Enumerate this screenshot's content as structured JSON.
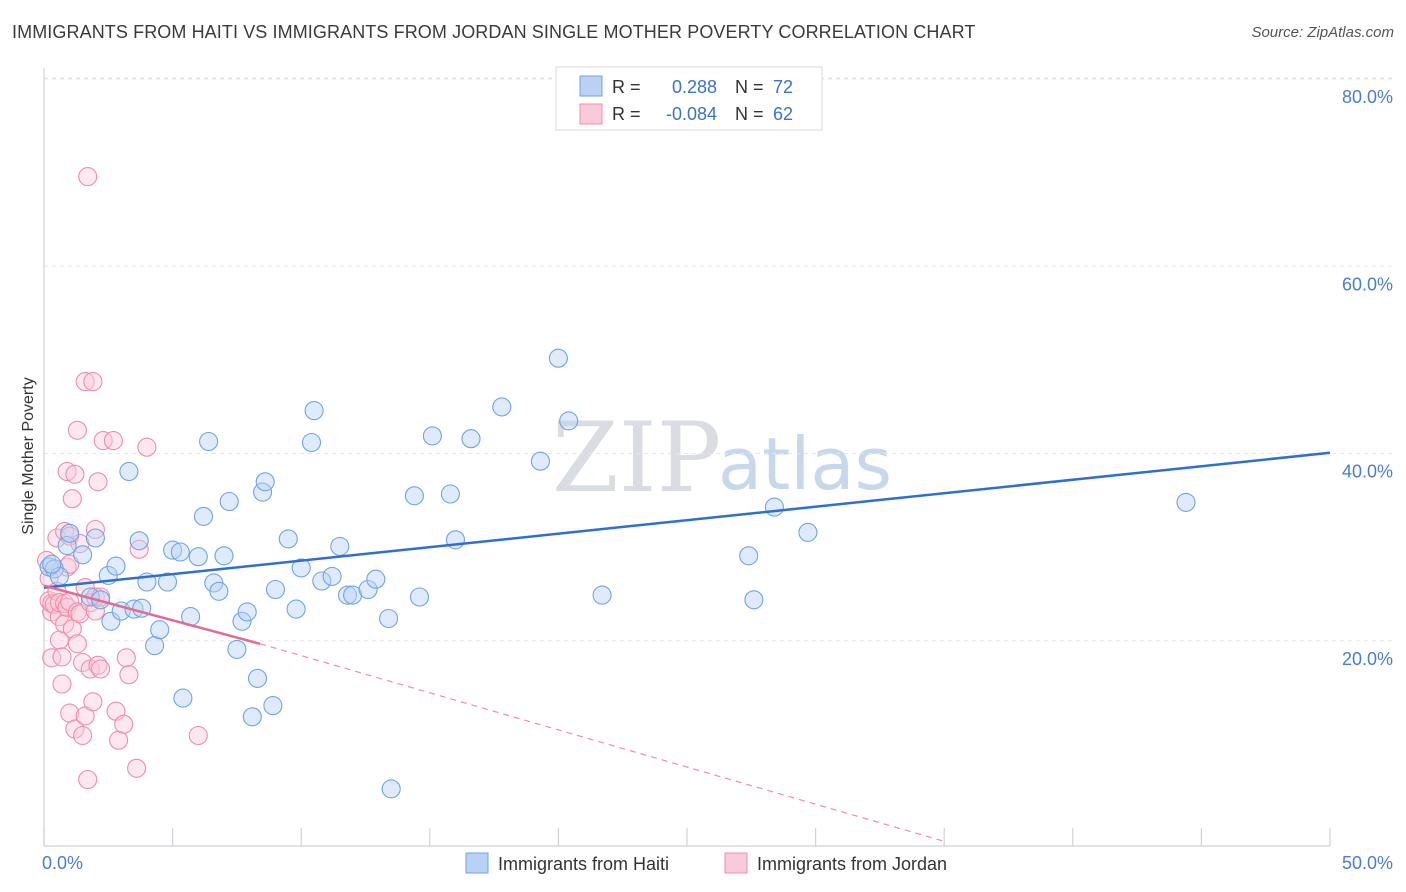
{
  "title": "IMMIGRANTS FROM HAITI VS IMMIGRANTS FROM JORDAN SINGLE MOTHER POVERTY CORRELATION CHART",
  "source": "Source: ZipAtlas.com",
  "watermark": {
    "zip": "ZIP",
    "atlas": "atlas"
  },
  "legend": {
    "r_label": "R =",
    "n_label": "N =",
    "rows": [
      {
        "r": "0.288",
        "n": "72",
        "color": "#6fa3e8"
      },
      {
        "r": "-0.084",
        "n": "62",
        "color": "#f08cab"
      }
    ]
  },
  "chart_data": {
    "type": "scatter",
    "title": "IMMIGRANTS FROM HAITI VS IMMIGRANTS FROM JORDAN SINGLE MOTHER POVERTY CORRELATION CHART",
    "xlabel": "",
    "ylabel": "Single Mother Poverty",
    "xlim": [
      0,
      50
    ],
    "ylim": [
      0,
      82
    ],
    "x_tick_labels": [
      "0.0%",
      "50.0%"
    ],
    "y_ticks": [
      20,
      40,
      60,
      80
    ],
    "y_tick_labels": [
      "20.0%",
      "40.0%",
      "60.0%",
      "80.0%"
    ],
    "grid": true,
    "series": [
      {
        "name": "Immigrants from Haiti",
        "color": "#6fa3e8",
        "trend": {
          "x0": 0,
          "y0": 27.6,
          "x1": 50,
          "y1": 42.0
        },
        "points": [
          [
            0.2,
            29.8
          ],
          [
            0.4,
            29.6
          ],
          [
            0.6,
            28.8
          ],
          [
            0.9,
            32.1
          ],
          [
            1.0,
            33.4
          ],
          [
            1.5,
            31.1
          ],
          [
            1.8,
            26.6
          ],
          [
            2.0,
            32.9
          ],
          [
            2.2,
            26.3
          ],
          [
            2.5,
            28.9
          ],
          [
            2.6,
            24.0
          ],
          [
            2.8,
            29.9
          ],
          [
            3.0,
            25.1
          ],
          [
            3.3,
            40.0
          ],
          [
            3.5,
            25.3
          ],
          [
            3.7,
            32.6
          ],
          [
            3.8,
            25.4
          ],
          [
            4.0,
            28.2
          ],
          [
            4.3,
            21.4
          ],
          [
            4.5,
            23.1
          ],
          [
            4.8,
            28.2
          ],
          [
            5.0,
            31.6
          ],
          [
            5.3,
            31.4
          ],
          [
            5.4,
            15.8
          ],
          [
            5.7,
            24.5
          ],
          [
            6.0,
            30.9
          ],
          [
            6.2,
            35.2
          ],
          [
            6.4,
            43.2
          ],
          [
            6.6,
            28.1
          ],
          [
            6.8,
            27.2
          ],
          [
            7.0,
            31.0
          ],
          [
            7.2,
            36.8
          ],
          [
            7.5,
            21.0
          ],
          [
            7.7,
            24.0
          ],
          [
            7.9,
            25.0
          ],
          [
            8.1,
            13.8
          ],
          [
            8.3,
            17.9
          ],
          [
            8.5,
            37.8
          ],
          [
            8.6,
            38.9
          ],
          [
            8.9,
            15.0
          ],
          [
            9.0,
            27.4
          ],
          [
            9.5,
            32.8
          ],
          [
            9.8,
            25.3
          ],
          [
            10.0,
            29.7
          ],
          [
            10.4,
            43.1
          ],
          [
            10.5,
            46.5
          ],
          [
            10.8,
            28.3
          ],
          [
            11.2,
            28.8
          ],
          [
            11.5,
            32.0
          ],
          [
            11.8,
            26.8
          ],
          [
            12.0,
            26.8
          ],
          [
            12.6,
            27.4
          ],
          [
            12.9,
            28.5
          ],
          [
            13.4,
            24.3
          ],
          [
            13.5,
            6.1
          ],
          [
            14.4,
            37.4
          ],
          [
            14.6,
            26.6
          ],
          [
            15.1,
            43.8
          ],
          [
            15.8,
            37.6
          ],
          [
            16.0,
            32.7
          ],
          [
            16.6,
            43.5
          ],
          [
            17.8,
            46.9
          ],
          [
            19.3,
            41.1
          ],
          [
            20.0,
            52.1
          ],
          [
            20.4,
            45.4
          ],
          [
            21.7,
            26.8
          ],
          [
            27.4,
            31.0
          ],
          [
            27.6,
            26.3
          ],
          [
            28.4,
            36.2
          ],
          [
            29.7,
            33.5
          ],
          [
            44.4,
            36.7
          ],
          [
            0.3,
            30.1
          ]
        ]
      },
      {
        "name": "Immigrants from Jordan",
        "color": "#f08cab",
        "trend": {
          "x0": 0,
          "y0": 27.8,
          "x1": 8.4,
          "y1": 21.6,
          "dash_x1": 35.0,
          "dash_y1": 0.5
        },
        "points": [
          [
            0.1,
            30.5
          ],
          [
            0.2,
            28.6
          ],
          [
            0.2,
            26.2
          ],
          [
            0.3,
            25.0
          ],
          [
            0.3,
            25.9
          ],
          [
            0.3,
            20.1
          ],
          [
            0.4,
            25.8
          ],
          [
            0.5,
            27.2
          ],
          [
            0.5,
            32.9
          ],
          [
            0.6,
            24.5
          ],
          [
            0.6,
            26.0
          ],
          [
            0.6,
            22.0
          ],
          [
            0.7,
            20.2
          ],
          [
            0.7,
            17.3
          ],
          [
            0.8,
            23.7
          ],
          [
            0.8,
            33.6
          ],
          [
            0.8,
            25.9
          ],
          [
            0.9,
            29.8
          ],
          [
            0.9,
            25.5
          ],
          [
            0.9,
            40.0
          ],
          [
            1.0,
            14.2
          ],
          [
            1.0,
            26.1
          ],
          [
            1.0,
            33.1
          ],
          [
            1.0,
            30.1
          ],
          [
            1.1,
            37.1
          ],
          [
            1.1,
            23.2
          ],
          [
            1.2,
            39.7
          ],
          [
            1.2,
            12.5
          ],
          [
            1.3,
            44.4
          ],
          [
            1.3,
            21.6
          ],
          [
            1.3,
            25.0
          ],
          [
            1.4,
            32.3
          ],
          [
            1.4,
            24.8
          ],
          [
            1.5,
            19.6
          ],
          [
            1.5,
            11.8
          ],
          [
            1.6,
            27.6
          ],
          [
            1.6,
            13.9
          ],
          [
            1.6,
            49.6
          ],
          [
            1.7,
            71.5
          ],
          [
            1.7,
            7.1
          ],
          [
            1.8,
            18.9
          ],
          [
            1.8,
            26.0
          ],
          [
            1.9,
            49.6
          ],
          [
            1.9,
            15.4
          ],
          [
            2.0,
            25.1
          ],
          [
            2.0,
            26.6
          ],
          [
            2.0,
            33.8
          ],
          [
            2.1,
            38.9
          ],
          [
            2.1,
            19.3
          ],
          [
            2.2,
            18.9
          ],
          [
            2.2,
            26.6
          ],
          [
            2.3,
            43.3
          ],
          [
            2.7,
            43.3
          ],
          [
            2.8,
            14.4
          ],
          [
            2.9,
            11.3
          ],
          [
            3.1,
            13.0
          ],
          [
            3.2,
            20.1
          ],
          [
            3.3,
            18.3
          ],
          [
            3.6,
            8.3
          ],
          [
            3.7,
            31.7
          ],
          [
            4.0,
            42.6
          ],
          [
            6.0,
            11.8
          ]
        ]
      }
    ]
  }
}
